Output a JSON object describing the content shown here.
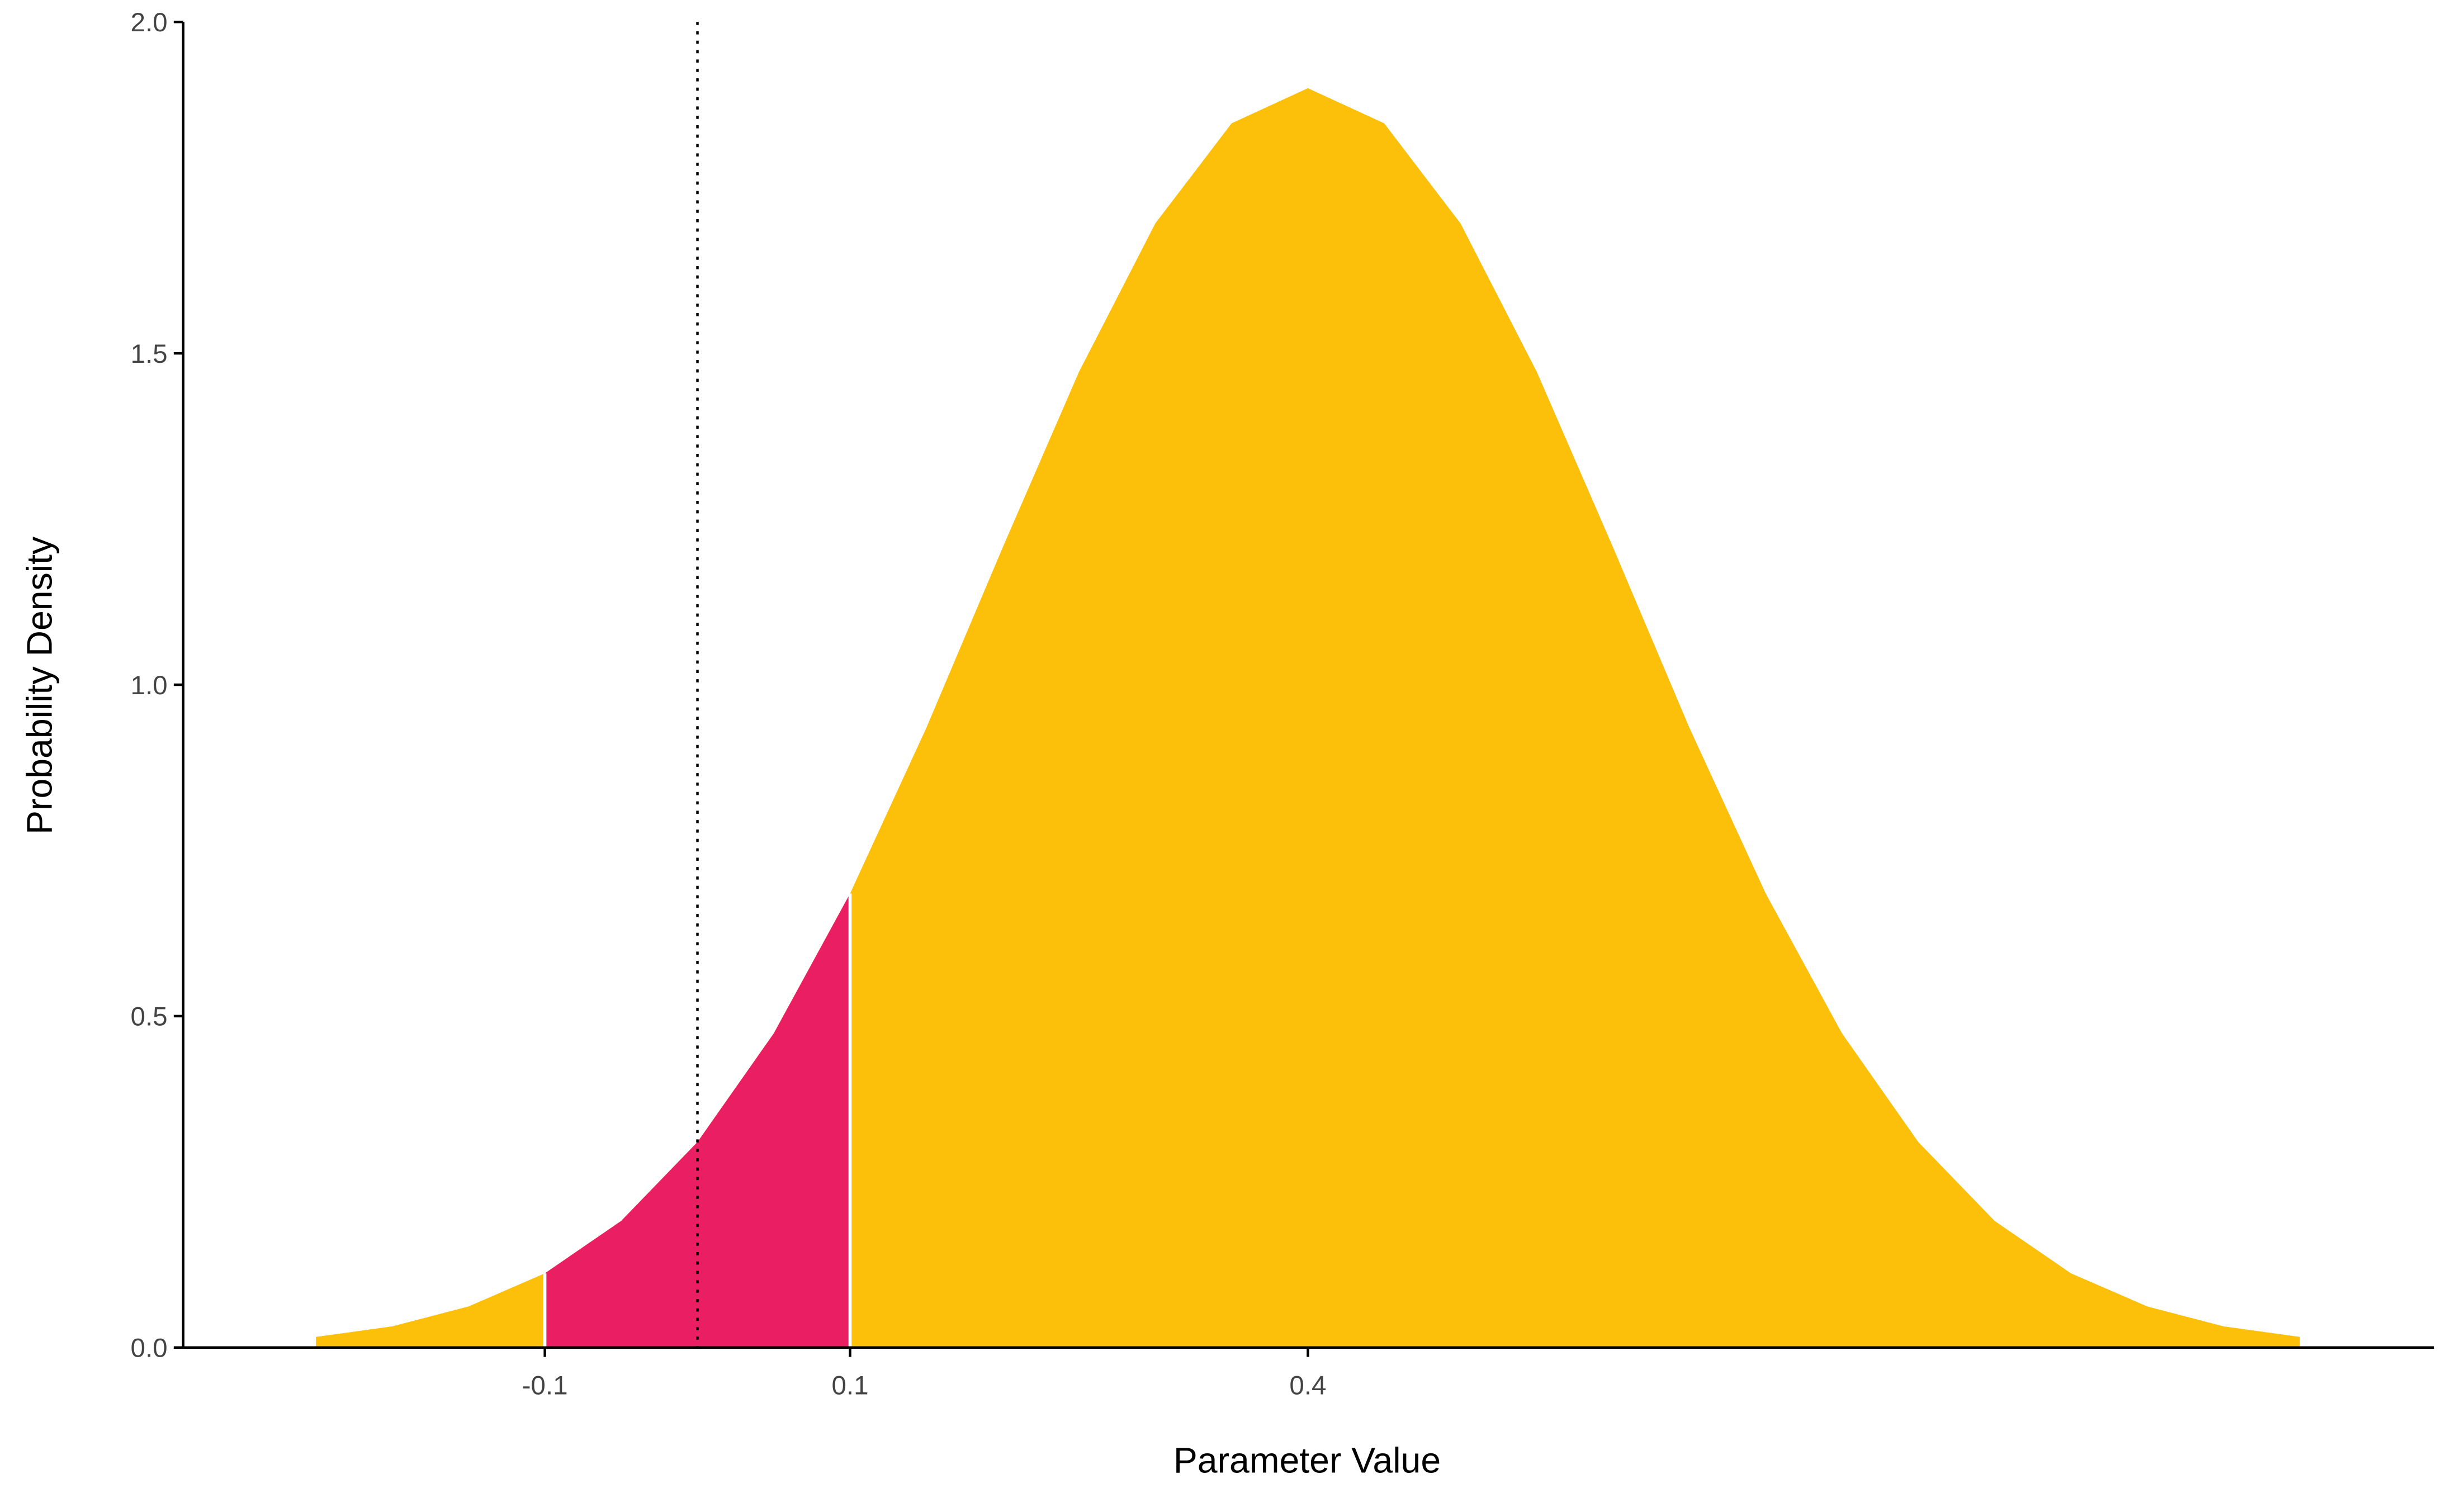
{
  "chart_data": {
    "type": "area",
    "x_label": "Parameter Value",
    "y_label": "Probability Density",
    "x": [
      -0.25,
      -0.2,
      -0.15,
      -0.1,
      -0.05,
      0,
      0.05,
      0.1,
      0.15,
      0.2,
      0.25,
      0.3,
      0.35,
      0.4,
      0.45,
      0.5,
      0.55,
      0.6,
      0.65,
      0.7,
      0.75,
      0.8,
      0.85,
      0.9,
      0.95,
      1.0,
      1.05
    ],
    "values": [
      0.016,
      0.032,
      0.062,
      0.112,
      0.191,
      0.31,
      0.474,
      0.685,
      0.935,
      1.207,
      1.472,
      1.696,
      1.847,
      1.9,
      1.847,
      1.696,
      1.472,
      1.207,
      0.935,
      0.685,
      0.474,
      0.31,
      0.191,
      0.112,
      0.062,
      0.032,
      0.016
    ],
    "color": "#fcc00a",
    "highlight_range": [
      -0.1,
      0.1
    ],
    "highlight_color": "#e91e63",
    "vline": 0,
    "xlim": [
      -0.337,
      1.138
    ],
    "ylim": [
      0,
      2.0
    ],
    "xticks": [
      -0.1,
      0.1,
      0.4
    ],
    "yticks": [
      {
        "value": 0,
        "label": "0.0"
      },
      0.5,
      {
        "value": 1,
        "label": "1.0"
      },
      1.5,
      {
        "value": 2,
        "label": "2.0"
      }
    ],
    "grid": false
  }
}
